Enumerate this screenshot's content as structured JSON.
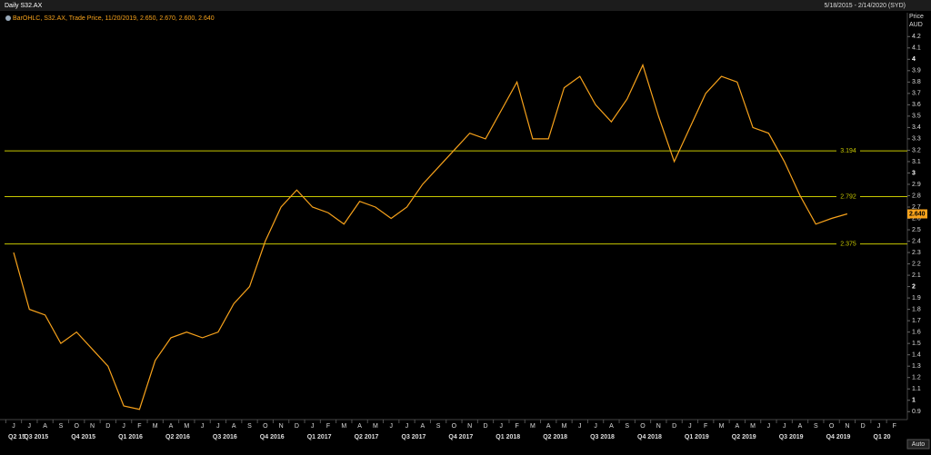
{
  "header": {
    "title": "Daily S32.AX",
    "range": "5/18/2015 - 2/14/2020 (SYD)",
    "legend": "BarOHLC, S32.AX, Trade Price, 11/20/2019, 2.650, 2.670, 2.600, 2.640",
    "auto_button": "Auto"
  },
  "chart_data": {
    "type": "line",
    "y_axis_label": "Price",
    "y_axis_unit": "AUD",
    "categories": [
      "J",
      "J",
      "A",
      "S",
      "O",
      "N",
      "D",
      "J",
      "F",
      "M",
      "A",
      "M",
      "J",
      "J",
      "A",
      "S",
      "O",
      "N",
      "D",
      "J",
      "F",
      "M",
      "A",
      "M",
      "J",
      "J",
      "A",
      "S",
      "O",
      "N",
      "D",
      "J",
      "F",
      "M",
      "A",
      "M",
      "J",
      "J",
      "A",
      "S",
      "O",
      "N",
      "D",
      "J",
      "F",
      "M",
      "A",
      "M",
      "J",
      "J",
      "A",
      "S",
      "O",
      "N",
      "D",
      "J",
      "F"
    ],
    "quarters": [
      "Q2 15",
      "Q3 2015",
      "Q4 2015",
      "Q1 2016",
      "Q2 2016",
      "Q3 2016",
      "Q4 2016",
      "Q1 2017",
      "Q2 2017",
      "Q3 2017",
      "Q4 2017",
      "Q1 2018",
      "Q2 2018",
      "Q3 2018",
      "Q4 2018",
      "Q1 2019",
      "Q2 2019",
      "Q3 2019",
      "Q4 2019",
      "Q1 20"
    ],
    "series": [
      {
        "name": "S32.AX",
        "color": "#f7a21b",
        "values": [
          2.3,
          1.8,
          1.75,
          1.5,
          1.6,
          1.45,
          1.3,
          0.95,
          0.92,
          1.35,
          1.55,
          1.6,
          1.55,
          1.6,
          1.85,
          2.0,
          2.4,
          2.7,
          2.85,
          2.7,
          2.65,
          2.55,
          2.75,
          2.7,
          2.6,
          2.7,
          2.9,
          3.05,
          3.2,
          3.35,
          3.3,
          3.55,
          3.8,
          3.3,
          3.3,
          3.75,
          3.85,
          3.6,
          3.45,
          3.65,
          3.95,
          3.5,
          3.1,
          3.4,
          3.7,
          3.85,
          3.8,
          3.4,
          3.35,
          3.1,
          2.8,
          2.55,
          2.6,
          2.64,
          null,
          null,
          null
        ]
      }
    ],
    "levels": [
      3.194,
      2.792,
      2.375
    ],
    "level_color": "#c8c800",
    "last_price": {
      "value": 2.64,
      "label": "2.640"
    },
    "ylim": [
      0.83,
      4.41
    ],
    "yticks": [
      0.9,
      1,
      1.1,
      1.2,
      1.3,
      1.4,
      1.5,
      1.6,
      1.7,
      1.8,
      1.9,
      2,
      2.1,
      2.2,
      2.3,
      2.4,
      2.5,
      2.6,
      2.7,
      2.8,
      2.9,
      3,
      3.1,
      3.2,
      3.3,
      3.4,
      3.5,
      3.6,
      3.7,
      3.8,
      3.9,
      4,
      4.1,
      4.2
    ]
  }
}
